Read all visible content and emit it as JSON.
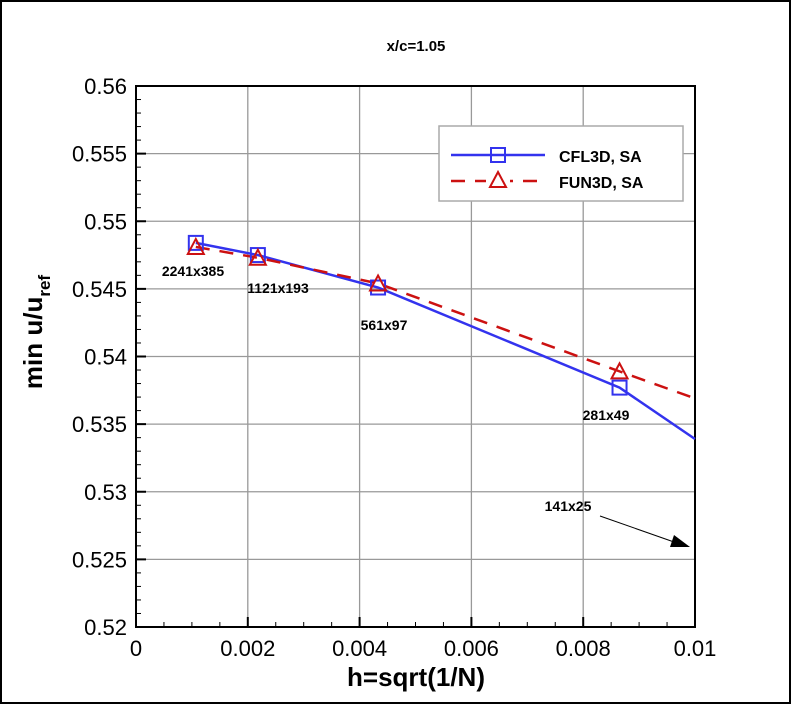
{
  "chart_data": {
    "type": "line",
    "title": "x/c=1.05",
    "xlabel": "h=sqrt(1/N)",
    "ylabel": "min u/u",
    "ylabel_subscript": "ref",
    "xlim": [
      0,
      0.01
    ],
    "ylim": [
      0.52,
      0.56
    ],
    "xticks": [
      "0",
      "0.002",
      "0.004",
      "0.006",
      "0.008",
      "0.01"
    ],
    "yticks": [
      "0.52",
      "0.525",
      "0.53",
      "0.535",
      "0.54",
      "0.545",
      "0.55",
      "0.555",
      "0.56"
    ],
    "grid": true,
    "legend_position": "top-right",
    "series": [
      {
        "name": "CFL3D, SA",
        "color": "#3333ee",
        "line": "solid",
        "marker": "square",
        "x": [
          0.00107,
          0.00218,
          0.00433,
          0.00865
        ],
        "y": [
          0.5484,
          0.5475,
          0.5451,
          0.5377
        ],
        "line_extension": {
          "x": 0.01,
          "y": 0.5339
        }
      },
      {
        "name": "FUN3D, SA",
        "color": "#cc1111",
        "line": "dashed",
        "marker": "triangle",
        "x": [
          0.00107,
          0.00218,
          0.00433,
          0.00865
        ],
        "y": [
          0.5481,
          0.5473,
          0.5454,
          0.5389
        ],
        "line_extension": {
          "x": 0.01,
          "y": 0.5369
        }
      }
    ],
    "annotations": [
      "2241x385",
      "1121x193",
      "561x97",
      "281x49",
      "141x25"
    ]
  }
}
